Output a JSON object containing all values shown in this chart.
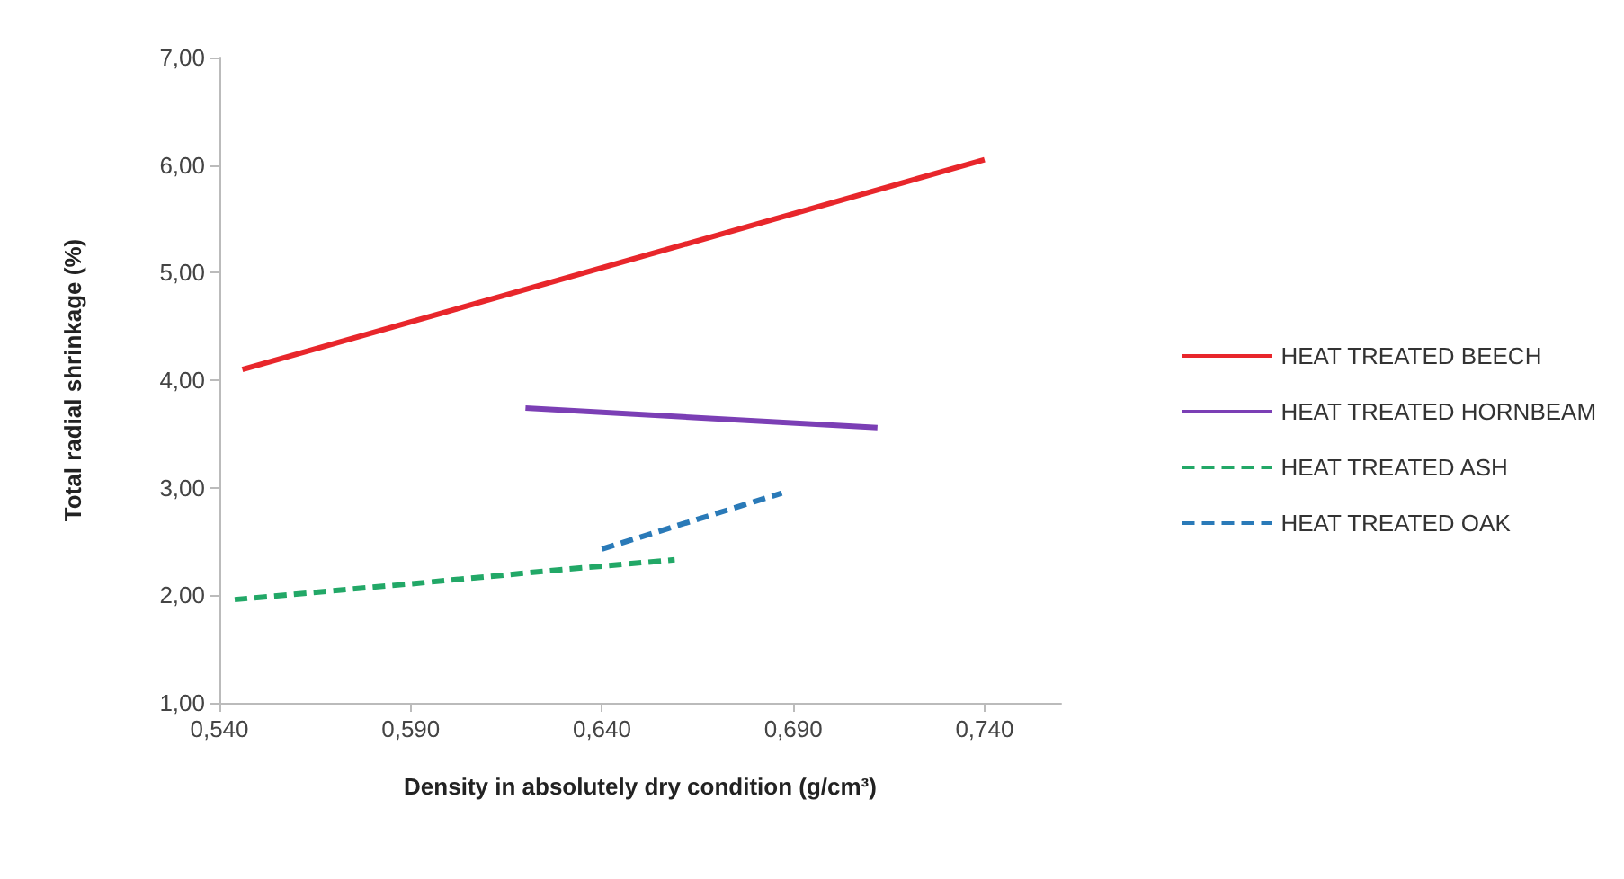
{
  "chart_data": {
    "type": "line",
    "xlabel": "Density in absolutely dry condition (g/cm³)",
    "ylabel": "Total radial shrinkage (%)",
    "xlim": [
      0.54,
      0.76
    ],
    "xticks": [
      {
        "value": 0.54,
        "label": "0,540"
      },
      {
        "value": 0.59,
        "label": "0,590"
      },
      {
        "value": 0.64,
        "label": "0,640"
      },
      {
        "value": 0.69,
        "label": "0,690"
      },
      {
        "value": 0.74,
        "label": "0,740"
      }
    ],
    "ylim": [
      1,
      7
    ],
    "yticks": [
      {
        "value": 1,
        "label": "1,00"
      },
      {
        "value": 2,
        "label": "2,00"
      },
      {
        "value": 3,
        "label": "3,00"
      },
      {
        "value": 4,
        "label": "4,00"
      },
      {
        "value": 5,
        "label": "5,00"
      },
      {
        "value": 6,
        "label": "6,00"
      },
      {
        "value": 7,
        "label": "7,00"
      }
    ],
    "grid": false,
    "legend": "right",
    "marker": "none",
    "series": [
      {
        "name": "HEAT TREATED BEECH",
        "color": "#e8262b",
        "line_style": "solid",
        "x": [
          0.546,
          0.74
        ],
        "values": [
          4.1,
          6.05
        ]
      },
      {
        "name": "HEAT TREATED HORNBEAM",
        "color": "#7b3fb5",
        "line_style": "solid",
        "x": [
          0.62,
          0.712
        ],
        "values": [
          3.74,
          3.56
        ]
      },
      {
        "name": "HEAT TREATED ASH",
        "color": "#22a867",
        "line_style": "dashed",
        "x": [
          0.544,
          0.591,
          0.63,
          0.659
        ],
        "values": [
          1.96,
          2.11,
          2.24,
          2.33
        ]
      },
      {
        "name": "HEAT TREATED OAK",
        "color": "#2a7ab8",
        "line_style": "dashed",
        "x": [
          0.64,
          0.687
        ],
        "values": [
          2.43,
          2.95
        ]
      }
    ]
  }
}
